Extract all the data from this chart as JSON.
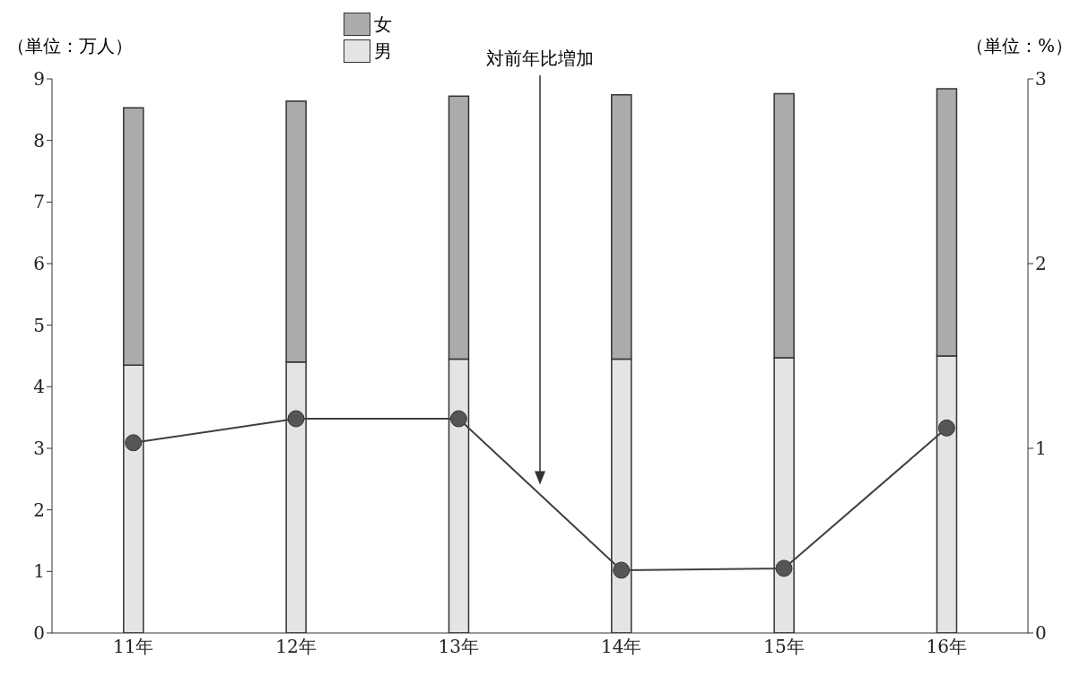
{
  "chart_data": {
    "type": "bar",
    "stacked": true,
    "categories": [
      "11年",
      "12年",
      "13年",
      "14年",
      "15年",
      "16年"
    ],
    "series": [
      {
        "name": "男",
        "color": "#e4e4e4",
        "values": [
          4.35,
          4.4,
          4.45,
          4.45,
          4.47,
          4.5
        ]
      },
      {
        "name": "女",
        "color": "#ababab",
        "values": [
          4.18,
          4.24,
          4.27,
          4.29,
          4.29,
          4.34
        ]
      },
      {
        "type": "line",
        "axis": "y2",
        "color": "#404040",
        "marker": "circle",
        "line_style": "solid",
        "values": [
          1.03,
          1.16,
          1.16,
          0.34,
          0.35,
          1.11
        ]
      }
    ],
    "ylabel": "（単位：万人）",
    "y2label": "（単位：%）",
    "ylim": [
      0,
      9
    ],
    "yticks": [
      0,
      1,
      2,
      3,
      4,
      5,
      6,
      7,
      8,
      9
    ],
    "y2lim": [
      0,
      3
    ],
    "y2ticks": [
      0,
      1,
      2,
      3
    ],
    "annotations": [
      "対前年比増加"
    ],
    "legend": "top",
    "grid": false
  }
}
